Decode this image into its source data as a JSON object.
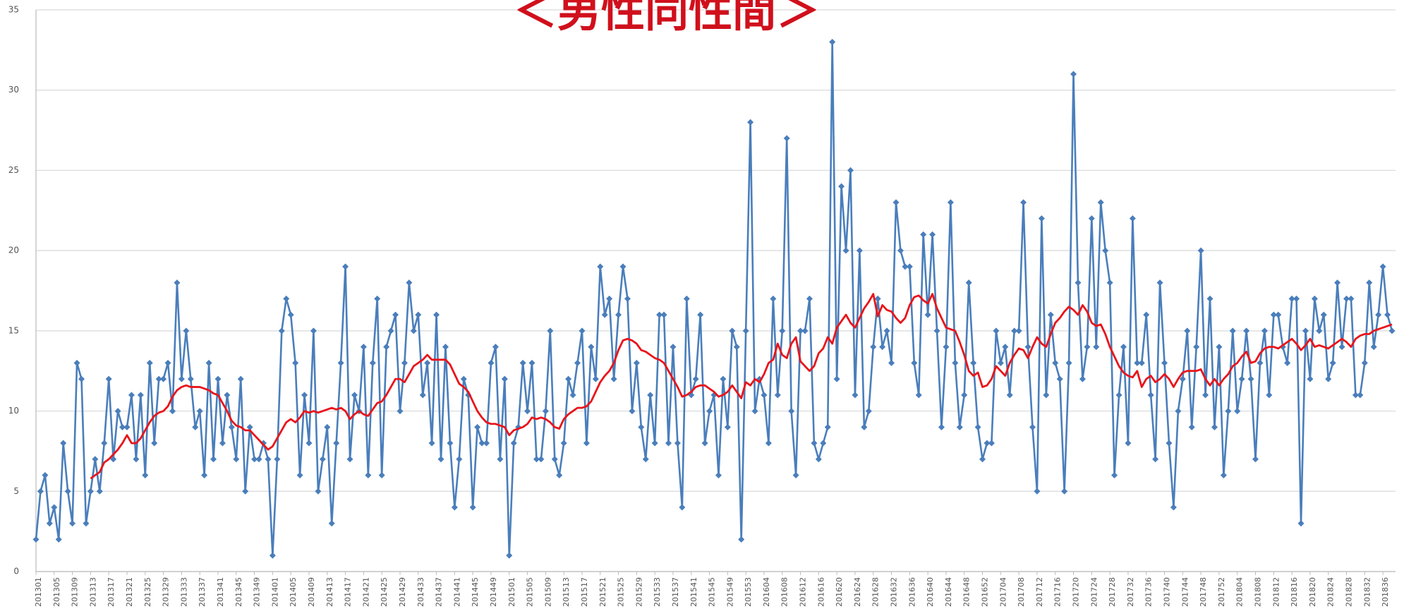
{
  "chart_data": {
    "type": "line",
    "title": "＜男性同性間＞",
    "categories": [
      "201301",
      null,
      null,
      null,
      "201305",
      null,
      null,
      null,
      "201309",
      null,
      null,
      null,
      "201313",
      null,
      null,
      null,
      "201317",
      null,
      null,
      null,
      "201321",
      null,
      null,
      null,
      "201325",
      null,
      null,
      null,
      "201329",
      null,
      null,
      null,
      "201333",
      null,
      null,
      null,
      "201337",
      null,
      null,
      null,
      "201341",
      null,
      null,
      null,
      "201345",
      null,
      null,
      null,
      "201349",
      null,
      null,
      null,
      "201401",
      null,
      null,
      null,
      "201405",
      null,
      null,
      null,
      "201409",
      null,
      null,
      null,
      "201413",
      null,
      null,
      null,
      "201417",
      null,
      null,
      null,
      "201421",
      null,
      null,
      null,
      "201425",
      null,
      null,
      null,
      "201429",
      null,
      null,
      null,
      "201433",
      null,
      null,
      null,
      "201437",
      null,
      null,
      null,
      "201441",
      null,
      null,
      null,
      "201445",
      null,
      null,
      null,
      "201449",
      null,
      null,
      null,
      "201501",
      null,
      null,
      null,
      "201505",
      null,
      null,
      null,
      "201509",
      null,
      null,
      null,
      "201513",
      null,
      null,
      null,
      "201517",
      null,
      null,
      null,
      "201521",
      null,
      null,
      null,
      "201525",
      null,
      null,
      null,
      "201529",
      null,
      null,
      null,
      "201533",
      null,
      null,
      null,
      "201537",
      null,
      null,
      null,
      "201541",
      null,
      null,
      null,
      "201545",
      null,
      null,
      null,
      "201549",
      null,
      null,
      null,
      "201553",
      null,
      null,
      null,
      "201604",
      null,
      null,
      null,
      "201608",
      null,
      null,
      null,
      "201612",
      null,
      null,
      null,
      "201616",
      null,
      null,
      null,
      "201620",
      null,
      null,
      null,
      "201624",
      null,
      null,
      null,
      "201628",
      null,
      null,
      null,
      "201632",
      null,
      null,
      null,
      "201636",
      null,
      null,
      null,
      "201640",
      null,
      null,
      null,
      "201644",
      null,
      null,
      null,
      "201648",
      null,
      null,
      null,
      "201652",
      null,
      null,
      null,
      "201704",
      null,
      null,
      null,
      "201708",
      null,
      null,
      null,
      "201712",
      null,
      null,
      null,
      "201716",
      null,
      null,
      null,
      "201720",
      null,
      null,
      null,
      "201724",
      null,
      null,
      null,
      "201728",
      null,
      null,
      null,
      "201732",
      null,
      null,
      null,
      "201736",
      null,
      null,
      null,
      "201740",
      null,
      null,
      null,
      "201744",
      null,
      null,
      null,
      "201748",
      null,
      null,
      null,
      "201752",
      null,
      null,
      null,
      "201804",
      null,
      null,
      null,
      "201808",
      null,
      null,
      null,
      "201812",
      null,
      null,
      null,
      "201816",
      null,
      null,
      null,
      "201820",
      null,
      null,
      null,
      "201824",
      null,
      null,
      null,
      "201828",
      null,
      null,
      null,
      "201832",
      null,
      null,
      null,
      "201836",
      null,
      null
    ],
    "series": [
      {
        "color": "#4a7ebb",
        "values": [
          2,
          5,
          6,
          3,
          4,
          2,
          8,
          5,
          3,
          13,
          12,
          3,
          5,
          7,
          5,
          8,
          12,
          7,
          10,
          9,
          9,
          11,
          7,
          11,
          6,
          13,
          8,
          12,
          12,
          13,
          10,
          18,
          12,
          15,
          12,
          9,
          10,
          6,
          13,
          7,
          12,
          8,
          11,
          9,
          7,
          12,
          5,
          9,
          7,
          7,
          8,
          7,
          1,
          7,
          15,
          17,
          16,
          13,
          6,
          11,
          8,
          15,
          5,
          7,
          9,
          3,
          8,
          13,
          19,
          7,
          11,
          10,
          14,
          6,
          13,
          17,
          6,
          14,
          15,
          16,
          10,
          13,
          18,
          15,
          16,
          11,
          13,
          8,
          16,
          7,
          14,
          8,
          4,
          7,
          12,
          11,
          4,
          9,
          8,
          8,
          13,
          14,
          7,
          12,
          1,
          8,
          9,
          13,
          10,
          13,
          7,
          7,
          10,
          15,
          7,
          6,
          8,
          12,
          11,
          13,
          15,
          8,
          14,
          12,
          19,
          16,
          17,
          12,
          16,
          19,
          17,
          10,
          13,
          9,
          7,
          11,
          8,
          16,
          16,
          8,
          14,
          8,
          4,
          17,
          11,
          12,
          16,
          8,
          10,
          11,
          6,
          12,
          9,
          15,
          14,
          2,
          15,
          28,
          10,
          12,
          11,
          8,
          17,
          11,
          15,
          27,
          10,
          6,
          15,
          15,
          17,
          8,
          7,
          8,
          9,
          33,
          12,
          24,
          20,
          25,
          11,
          20,
          9,
          10,
          14,
          17,
          14,
          15,
          13,
          23,
          20,
          19,
          19,
          13,
          11,
          21,
          16,
          21,
          15,
          9,
          14,
          23,
          13,
          9,
          11,
          18,
          13,
          9,
          7,
          8,
          8,
          15,
          13,
          14,
          11,
          15,
          15,
          23,
          14,
          9,
          5,
          22,
          11,
          16,
          13,
          12,
          5,
          13,
          31,
          18,
          12,
          14,
          22,
          14,
          23,
          20,
          18,
          6,
          11,
          14,
          8,
          22,
          13,
          13,
          16,
          11,
          7,
          18,
          13,
          8,
          4,
          10,
          12,
          15,
          9,
          14,
          20,
          11,
          17,
          9,
          14,
          6,
          10,
          15,
          10,
          12,
          15,
          12,
          7,
          13,
          15,
          11,
          16,
          16,
          14,
          13,
          17,
          17,
          3,
          15,
          12,
          17,
          15,
          16,
          12,
          13,
          18,
          14,
          17,
          17,
          11,
          11,
          13,
          18,
          14,
          16,
          19,
          16,
          15
        ]
      },
      {
        "color": "#e8151b",
        "values": [
          null,
          null,
          null,
          null,
          null,
          null,
          null,
          null,
          null,
          null,
          null,
          null,
          5.8,
          6.0,
          6.2,
          6.8,
          7.0,
          7.3,
          7.6,
          8.0,
          8.5,
          8.0,
          8.0,
          8.3,
          8.8,
          9.3,
          9.7,
          9.9,
          10.0,
          10.3,
          10.9,
          11.3,
          11.5,
          11.6,
          11.5,
          11.5,
          11.5,
          11.4,
          11.3,
          11.1,
          11.0,
          10.5,
          10.0,
          9.4,
          9.1,
          9.0,
          8.8,
          8.8,
          8.5,
          8.2,
          7.9,
          7.6,
          7.8,
          8.3,
          8.8,
          9.3,
          9.5,
          9.3,
          9.6,
          10.0,
          9.9,
          10.0,
          9.9,
          10.0,
          10.1,
          10.2,
          10.1,
          10.2,
          10.0,
          9.5,
          9.8,
          10.0,
          9.8,
          9.7,
          10.1,
          10.5,
          10.6,
          11.0,
          11.5,
          12.0,
          12.0,
          11.8,
          12.3,
          12.8,
          13.0,
          13.2,
          13.5,
          13.2,
          13.2,
          13.2,
          13.2,
          12.9,
          12.3,
          11.7,
          11.5,
          11.2,
          10.6,
          10.0,
          9.6,
          9.3,
          9.2,
          9.2,
          9.1,
          9.0,
          8.5,
          8.8,
          8.9,
          9.0,
          9.2,
          9.6,
          9.5,
          9.6,
          9.5,
          9.3,
          9.0,
          8.9,
          9.5,
          9.8,
          10.0,
          10.2,
          10.2,
          10.3,
          10.6,
          11.2,
          11.8,
          12.2,
          12.5,
          13.0,
          13.8,
          14.4,
          14.5,
          14.4,
          14.2,
          13.8,
          13.7,
          13.5,
          13.3,
          13.2,
          13.0,
          12.5,
          12.0,
          11.5,
          10.9,
          11.0,
          11.2,
          11.5,
          11.6,
          11.6,
          11.4,
          11.2,
          10.9,
          11.0,
          11.2,
          11.6,
          11.2,
          10.8,
          11.8,
          11.6,
          12.0,
          11.8,
          12.3,
          13.0,
          13.2,
          14.2,
          13.5,
          13.3,
          14.2,
          14.6,
          13.1,
          12.8,
          12.5,
          12.8,
          13.6,
          13.9,
          14.6,
          14.2,
          15.2,
          15.6,
          16.0,
          15.5,
          15.2,
          15.8,
          16.4,
          16.8,
          17.3,
          15.9,
          16.6,
          16.3,
          16.2,
          15.8,
          15.5,
          15.8,
          16.6,
          17.1,
          17.2,
          16.9,
          16.7,
          17.3,
          16.4,
          15.8,
          15.2,
          15.1,
          15.0,
          14.3,
          13.5,
          12.5,
          12.2,
          12.4,
          11.5,
          11.6,
          12.0,
          12.8,
          12.5,
          12.2,
          13.0,
          13.5,
          13.9,
          13.8,
          13.3,
          14.0,
          14.6,
          14.2,
          14.0,
          14.8,
          15.5,
          15.8,
          16.2,
          16.5,
          16.3,
          16.0,
          16.6,
          16.2,
          15.5,
          15.3,
          15.4,
          14.8,
          14.0,
          13.4,
          12.8,
          12.4,
          12.2,
          12.1,
          12.5,
          11.5,
          12.0,
          12.2,
          11.8,
          12.0,
          12.3,
          12.0,
          11.5,
          12.0,
          12.4,
          12.5,
          12.5,
          12.5,
          12.6,
          12.0,
          11.6,
          12.0,
          11.6,
          12.0,
          12.3,
          12.8,
          13.0,
          13.4,
          13.7,
          13.0,
          13.1,
          13.6,
          13.9,
          14.0,
          14.0,
          13.9,
          14.1,
          14.3,
          14.5,
          14.2,
          13.8,
          14.1,
          14.5,
          14.0,
          14.1,
          14.0,
          13.9,
          14.1,
          14.3,
          14.5,
          14.3,
          14.0,
          14.5,
          14.7,
          14.8,
          14.8,
          15.0,
          15.1,
          15.2,
          15.3,
          15.4
        ]
      }
    ],
    "ylim": [
      0,
      35
    ],
    "yticks": [
      0,
      5,
      10,
      15,
      20,
      25,
      30,
      35
    ],
    "grid": true
  }
}
